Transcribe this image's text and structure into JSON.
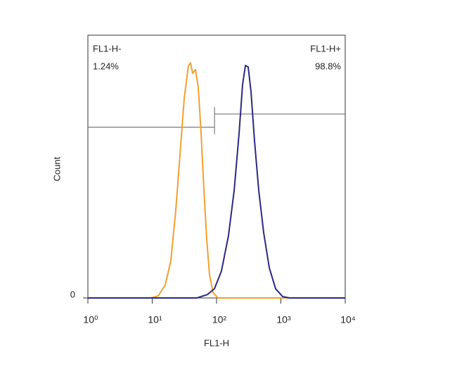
{
  "chart_data": {
    "type": "histogram",
    "xlabel": "FL1-H",
    "ylabel": "Count",
    "xscale": "log",
    "xlim": [
      1,
      10000
    ],
    "xticks": [
      {
        "value": 1,
        "label": "10⁰"
      },
      {
        "value": 10,
        "label": "10¹"
      },
      {
        "value": 100,
        "label": "10²"
      },
      {
        "value": 1000,
        "label": "10³"
      },
      {
        "value": 10000,
        "label": "10⁴"
      }
    ],
    "ylim": [
      0,
      100
    ],
    "yticks": [
      0
    ],
    "gates": [
      {
        "label": "FL1-H-",
        "percent": "1.24%",
        "xrange": [
          1,
          93
        ],
        "y": 65,
        "align": "left"
      },
      {
        "label": "FL1-H+",
        "percent": "98.8%",
        "xrange": [
          93,
          10000
        ],
        "y": 70,
        "align": "right"
      }
    ],
    "series": [
      {
        "color": "#f0a030",
        "x": [
          1,
          9.6,
          12.4,
          15.9,
          19.5,
          23.2,
          27.0,
          31.4,
          36.5,
          39.4,
          42.5,
          47.0,
          52.0,
          57.5,
          63.6,
          70.3,
          77.8,
          88.2,
          105,
          10000
        ],
        "values": [
          0,
          0,
          0.8,
          4.8,
          14.2,
          33.0,
          54.4,
          75.9,
          88.2,
          89.5,
          85.5,
          86.9,
          80.2,
          62.7,
          41.3,
          22.5,
          8.8,
          2.1,
          0,
          0
        ]
      },
      {
        "color": "#2a2a80",
        "x": [
          1,
          49.4,
          72.1,
          92.7,
          119,
          153,
          188,
          224,
          254,
          281,
          310,
          343,
          389,
          453,
          540,
          660,
          828,
          1065,
          1370,
          10000
        ],
        "values": [
          0,
          0,
          1.3,
          3.5,
          10.2,
          23.6,
          41.0,
          62.5,
          81.2,
          88.5,
          87.9,
          78.6,
          59.8,
          41.0,
          24.9,
          11.5,
          3.5,
          0.5,
          0,
          0
        ]
      }
    ]
  }
}
